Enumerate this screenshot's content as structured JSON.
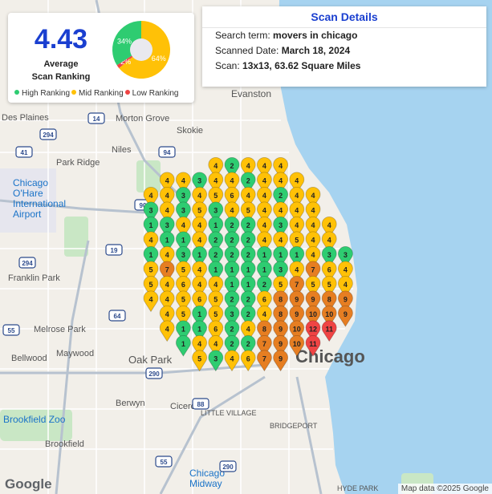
{
  "summary": {
    "average_value": "4.43",
    "average_label_line1": "Average",
    "average_label_line2": "Scan Ranking",
    "donut": [
      {
        "label": "34%",
        "fraction": 0.34,
        "color": "#2ecc71"
      },
      {
        "label": "64%",
        "fraction": 0.64,
        "color": "#ffc107"
      },
      {
        "label": "2%",
        "fraction": 0.02,
        "color": "#ef4444"
      }
    ],
    "legend": [
      {
        "label": "High Ranking",
        "color": "#2ecc71"
      },
      {
        "label": "Mid Ranking",
        "color": "#ffc107"
      },
      {
        "label": "Low Ranking",
        "color": "#ef4444"
      }
    ]
  },
  "details": {
    "title": "Scan Details",
    "search_label": "Search term:",
    "search_value": "movers in chicago",
    "date_label": "Scanned Date:",
    "date_value": "March 18, 2024",
    "scan_label": "Scan:",
    "scan_value": "13x13, 63.62 Square Miles"
  },
  "map": {
    "water_color": "#a6d3f0",
    "land_color": "#f2efe9",
    "park_color": "#c9e7c5",
    "place_labels": [
      "Evanston",
      "Des Plaines",
      "Morton Grove",
      "Skokie",
      "Niles",
      "Park Ridge",
      "Chicago O'Hare International Airport",
      "Franklin Park",
      "Melrose Park",
      "Bellwood",
      "Maywood",
      "Oak Park",
      "Cicero",
      "Berwyn",
      "Brookfield Zoo",
      "Brookfield",
      "LITTLE VILLAGE",
      "BRIDGEPORT",
      "Chicago Midway",
      "HYDE PARK",
      "Chicago"
    ],
    "highway_shields": [
      "294",
      "14",
      "41",
      "94",
      "90",
      "19",
      "294",
      "290",
      "64",
      "88",
      "55",
      "55",
      "290"
    ],
    "google_text": "Google",
    "attribution": "Map data ©2025 Google"
  },
  "pin_colors": {
    "high": "#2ecc71",
    "mid": "#ffc107",
    "midhigh": "#f39c12",
    "orange": "#e67e22",
    "low": "#ef4444"
  },
  "pins": [
    [
      0,
      0,
      "",
      ""
    ],
    [
      0,
      1,
      "",
      ""
    ],
    [
      0,
      2,
      "",
      ""
    ],
    [
      0,
      3,
      "",
      ""
    ],
    [
      0,
      4,
      "4",
      "mid"
    ],
    [
      0,
      5,
      "2",
      "high"
    ],
    [
      0,
      6,
      "4",
      "mid"
    ],
    [
      0,
      7,
      "4",
      "mid"
    ],
    [
      0,
      8,
      "4",
      "mid"
    ],
    [
      1,
      1,
      "4",
      "mid"
    ],
    [
      1,
      2,
      "4",
      "mid"
    ],
    [
      1,
      3,
      "3",
      "high"
    ],
    [
      1,
      4,
      "4",
      "mid"
    ],
    [
      1,
      5,
      "4",
      "mid"
    ],
    [
      1,
      6,
      "2",
      "high"
    ],
    [
      1,
      7,
      "4",
      "mid"
    ],
    [
      1,
      8,
      "4",
      "mid"
    ],
    [
      1,
      9,
      "4",
      "mid"
    ],
    [
      2,
      0,
      "4",
      "mid"
    ],
    [
      2,
      1,
      "4",
      "mid"
    ],
    [
      2,
      2,
      "3",
      "high"
    ],
    [
      2,
      3,
      "4",
      "mid"
    ],
    [
      2,
      4,
      "5",
      "mid"
    ],
    [
      2,
      5,
      "6",
      "mid"
    ],
    [
      2,
      6,
      "4",
      "mid"
    ],
    [
      2,
      7,
      "4",
      "mid"
    ],
    [
      2,
      8,
      "2",
      "high"
    ],
    [
      2,
      9,
      "4",
      "mid"
    ],
    [
      2,
      10,
      "4",
      "mid"
    ],
    [
      3,
      0,
      "3",
      "high"
    ],
    [
      3,
      1,
      "4",
      "mid"
    ],
    [
      3,
      2,
      "3",
      "high"
    ],
    [
      3,
      3,
      "5",
      "mid"
    ],
    [
      3,
      4,
      "3",
      "high"
    ],
    [
      3,
      5,
      "4",
      "mid"
    ],
    [
      3,
      6,
      "5",
      "mid"
    ],
    [
      3,
      7,
      "4",
      "mid"
    ],
    [
      3,
      8,
      "4",
      "mid"
    ],
    [
      3,
      9,
      "4",
      "mid"
    ],
    [
      3,
      10,
      "4",
      "mid"
    ],
    [
      4,
      0,
      "1",
      "high"
    ],
    [
      4,
      1,
      "3",
      "high"
    ],
    [
      4,
      2,
      "4",
      "mid"
    ],
    [
      4,
      3,
      "4",
      "mid"
    ],
    [
      4,
      4,
      "1",
      "high"
    ],
    [
      4,
      5,
      "2",
      "high"
    ],
    [
      4,
      6,
      "2",
      "high"
    ],
    [
      4,
      7,
      "4",
      "mid"
    ],
    [
      4,
      8,
      "3",
      "high"
    ],
    [
      4,
      9,
      "4",
      "mid"
    ],
    [
      4,
      10,
      "4",
      "mid"
    ],
    [
      4,
      11,
      "4",
      "mid"
    ],
    [
      5,
      0,
      "4",
      "mid"
    ],
    [
      5,
      1,
      "1",
      "high"
    ],
    [
      5,
      2,
      "1",
      "high"
    ],
    [
      5,
      3,
      "4",
      "mid"
    ],
    [
      5,
      4,
      "2",
      "high"
    ],
    [
      5,
      5,
      "2",
      "high"
    ],
    [
      5,
      6,
      "2",
      "high"
    ],
    [
      5,
      7,
      "4",
      "mid"
    ],
    [
      5,
      8,
      "4",
      "mid"
    ],
    [
      5,
      9,
      "5",
      "mid"
    ],
    [
      5,
      10,
      "4",
      "mid"
    ],
    [
      5,
      11,
      "4",
      "mid"
    ],
    [
      6,
      0,
      "1",
      "high"
    ],
    [
      6,
      1,
      "4",
      "mid"
    ],
    [
      6,
      2,
      "3",
      "high"
    ],
    [
      6,
      3,
      "1",
      "high"
    ],
    [
      6,
      4,
      "2",
      "high"
    ],
    [
      6,
      5,
      "2",
      "high"
    ],
    [
      6,
      6,
      "2",
      "high"
    ],
    [
      6,
      7,
      "1",
      "high"
    ],
    [
      6,
      8,
      "1",
      "high"
    ],
    [
      6,
      9,
      "1",
      "high"
    ],
    [
      6,
      10,
      "4",
      "mid"
    ],
    [
      6,
      11,
      "3",
      "high"
    ],
    [
      6,
      12,
      "3",
      "high"
    ],
    [
      7,
      0,
      "5",
      "mid"
    ],
    [
      7,
      1,
      "7",
      "orange"
    ],
    [
      7,
      2,
      "5",
      "mid"
    ],
    [
      7,
      3,
      "4",
      "mid"
    ],
    [
      7,
      4,
      "1",
      "high"
    ],
    [
      7,
      5,
      "1",
      "high"
    ],
    [
      7,
      6,
      "1",
      "high"
    ],
    [
      7,
      7,
      "1",
      "high"
    ],
    [
      7,
      8,
      "3",
      "high"
    ],
    [
      7,
      9,
      "4",
      "mid"
    ],
    [
      7,
      10,
      "7",
      "orange"
    ],
    [
      7,
      11,
      "6",
      "mid"
    ],
    [
      7,
      12,
      "4",
      "mid"
    ],
    [
      8,
      0,
      "5",
      "mid"
    ],
    [
      8,
      1,
      "4",
      "mid"
    ],
    [
      8,
      2,
      "6",
      "mid"
    ],
    [
      8,
      3,
      "4",
      "mid"
    ],
    [
      8,
      4,
      "4",
      "mid"
    ],
    [
      8,
      5,
      "1",
      "high"
    ],
    [
      8,
      6,
      "1",
      "high"
    ],
    [
      8,
      7,
      "2",
      "high"
    ],
    [
      8,
      8,
      "5",
      "mid"
    ],
    [
      8,
      9,
      "7",
      "orange"
    ],
    [
      8,
      10,
      "5",
      "mid"
    ],
    [
      8,
      11,
      "5",
      "mid"
    ],
    [
      8,
      12,
      "4",
      "mid"
    ],
    [
      9,
      0,
      "4",
      "mid"
    ],
    [
      9,
      1,
      "4",
      "mid"
    ],
    [
      9,
      2,
      "5",
      "mid"
    ],
    [
      9,
      3,
      "6",
      "mid"
    ],
    [
      9,
      4,
      "5",
      "mid"
    ],
    [
      9,
      5,
      "2",
      "high"
    ],
    [
      9,
      6,
      "2",
      "high"
    ],
    [
      9,
      7,
      "6",
      "mid"
    ],
    [
      9,
      8,
      "8",
      "orange"
    ],
    [
      9,
      9,
      "9",
      "orange"
    ],
    [
      9,
      10,
      "9",
      "orange"
    ],
    [
      9,
      11,
      "8",
      "orange"
    ],
    [
      9,
      12,
      "9",
      "orange"
    ],
    [
      10,
      1,
      "4",
      "mid"
    ],
    [
      10,
      2,
      "5",
      "mid"
    ],
    [
      10,
      3,
      "1",
      "high"
    ],
    [
      10,
      4,
      "5",
      "mid"
    ],
    [
      10,
      5,
      "3",
      "high"
    ],
    [
      10,
      6,
      "2",
      "high"
    ],
    [
      10,
      7,
      "4",
      "mid"
    ],
    [
      10,
      8,
      "8",
      "orange"
    ],
    [
      10,
      9,
      "9",
      "orange"
    ],
    [
      10,
      10,
      "10",
      "orange"
    ],
    [
      10,
      11,
      "10",
      "orange"
    ],
    [
      10,
      12,
      "9",
      "orange"
    ],
    [
      11,
      1,
      "4",
      "mid"
    ],
    [
      11,
      2,
      "1",
      "high"
    ],
    [
      11,
      3,
      "1",
      "high"
    ],
    [
      11,
      4,
      "6",
      "mid"
    ],
    [
      11,
      5,
      "2",
      "high"
    ],
    [
      11,
      6,
      "4",
      "mid"
    ],
    [
      11,
      7,
      "8",
      "orange"
    ],
    [
      11,
      8,
      "9",
      "orange"
    ],
    [
      11,
      9,
      "10",
      "orange"
    ],
    [
      11,
      10,
      "12",
      "low"
    ],
    [
      11,
      11,
      "11",
      "low"
    ],
    [
      12,
      2,
      "1",
      "high"
    ],
    [
      12,
      3,
      "4",
      "mid"
    ],
    [
      12,
      4,
      "4",
      "mid"
    ],
    [
      12,
      5,
      "2",
      "high"
    ],
    [
      12,
      6,
      "2",
      "high"
    ],
    [
      12,
      7,
      "7",
      "orange"
    ],
    [
      12,
      8,
      "9",
      "orange"
    ],
    [
      12,
      9,
      "10",
      "orange"
    ],
    [
      12,
      10,
      "11",
      "low"
    ],
    [
      13,
      3,
      "5",
      "mid"
    ],
    [
      13,
      4,
      "3",
      "high"
    ],
    [
      13,
      5,
      "4",
      "mid"
    ],
    [
      13,
      6,
      "6",
      "mid"
    ],
    [
      13,
      7,
      "7",
      "orange"
    ],
    [
      13,
      8,
      "9",
      "orange"
    ]
  ]
}
